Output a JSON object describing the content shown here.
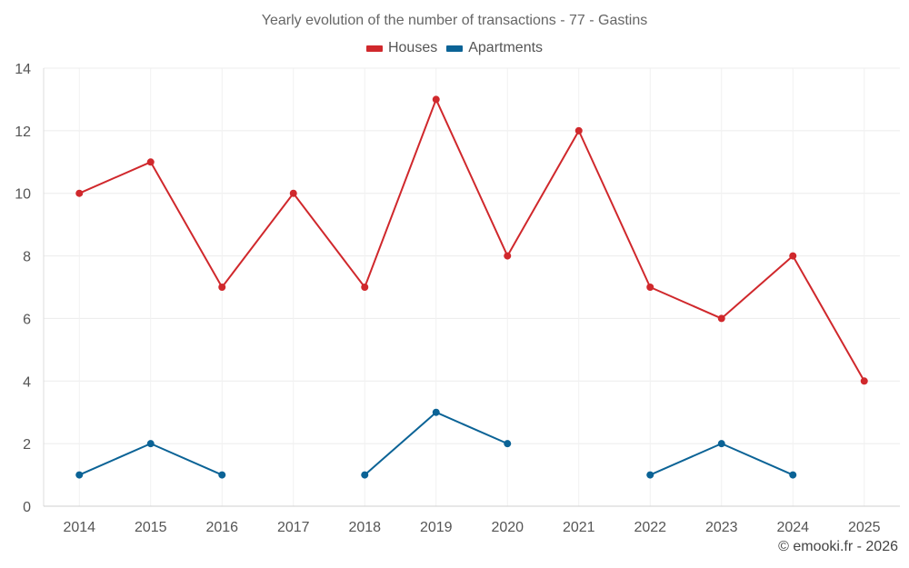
{
  "chart_data": {
    "type": "line",
    "title": "Yearly evolution of the number of transactions - 77 - Gastins",
    "categories": [
      "2014",
      "2015",
      "2016",
      "2017",
      "2018",
      "2019",
      "2020",
      "2021",
      "2022",
      "2023",
      "2024",
      "2025"
    ],
    "ylim": [
      0,
      14
    ],
    "yticks": [
      0,
      2,
      4,
      6,
      8,
      10,
      12,
      14
    ],
    "grid": true,
    "legend_position": "top-center",
    "series": [
      {
        "name": "Houses",
        "color": "#d0282c",
        "values": [
          10,
          11,
          7,
          10,
          7,
          13,
          8,
          12,
          7,
          6,
          8,
          4
        ]
      },
      {
        "name": "Apartments",
        "color": "#0b6396",
        "values": [
          1,
          2,
          1,
          null,
          1,
          3,
          2,
          null,
          1,
          2,
          1,
          null
        ]
      }
    ],
    "xlabel": "",
    "ylabel": ""
  },
  "credit": "© emooki.fr - 2026"
}
